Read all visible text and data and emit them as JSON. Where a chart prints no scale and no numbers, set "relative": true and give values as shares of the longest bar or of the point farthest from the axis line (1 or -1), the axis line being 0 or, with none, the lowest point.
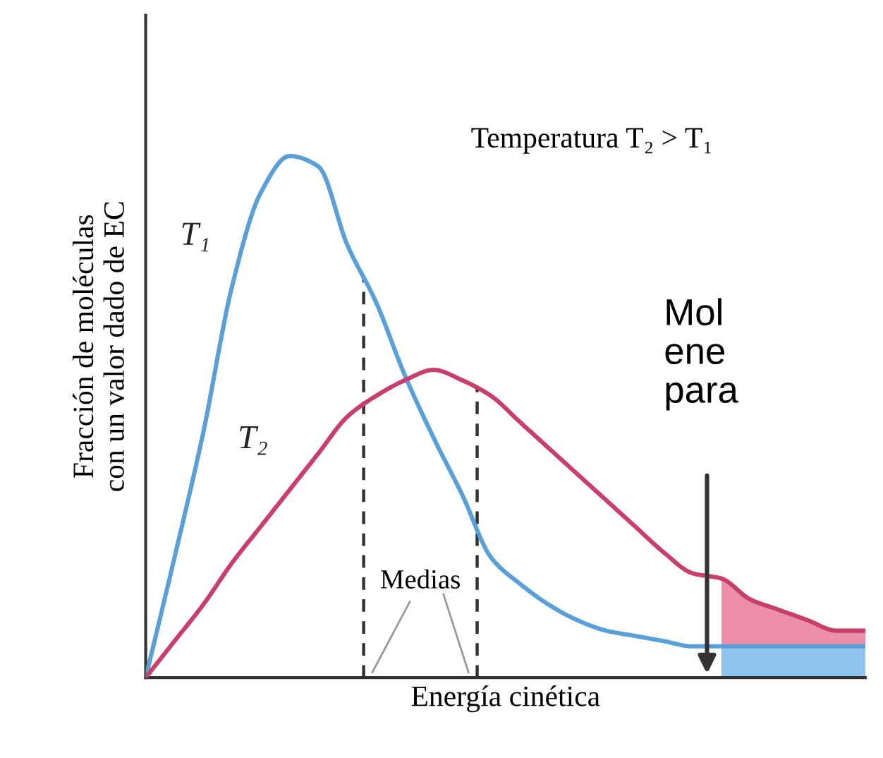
{
  "chart_data": {
    "type": "line",
    "relative": true,
    "xlabel": "Energía cinética",
    "ylabel": "Fracción de moléculas\ncon un valor dado de EC",
    "categories": [
      null,
      null,
      null,
      null,
      null,
      null,
      null,
      null,
      null,
      null,
      null,
      null,
      null,
      null,
      null,
      null,
      null,
      null,
      null,
      null,
      null,
      null,
      null,
      null,
      null,
      null
    ],
    "series": [
      {
        "type": "area",
        "color": "#ec8fa8",
        "values": [
          null,
          null,
          null,
          null,
          null,
          null,
          null,
          null,
          null,
          null,
          null,
          null,
          null,
          null,
          null,
          null,
          null,
          null,
          null,
          null,
          0.19,
          0.15,
          0.13,
          0.11,
          0.09,
          0.09
        ]
      },
      {
        "type": "area",
        "color": "#8fc2ee",
        "values": [
          null,
          null,
          null,
          null,
          null,
          null,
          null,
          null,
          null,
          null,
          null,
          null,
          null,
          null,
          null,
          null,
          null,
          null,
          null,
          null,
          0.06,
          0.06,
          0.06,
          0.06,
          0.06,
          0.06
        ]
      },
      {
        "name": "T₁",
        "color": "#5aa0d8",
        "values": [
          0,
          0.23,
          0.47,
          0.75,
          0.93,
          1.0,
          0.98,
          0.83,
          0.72,
          0.58,
          0.46,
          0.35,
          0.23,
          0.18,
          0.14,
          0.11,
          0.09,
          0.08,
          0.07,
          0.06,
          0.06,
          0.06,
          0.06,
          0.06,
          0.06,
          0.06
        ]
      },
      {
        "name": "T₂",
        "color": "#c8406a",
        "values": [
          0,
          0.07,
          0.14,
          0.22,
          0.29,
          0.36,
          0.43,
          0.5,
          0.54,
          0.57,
          0.59,
          0.57,
          0.54,
          0.49,
          0.44,
          0.39,
          0.34,
          0.29,
          0.24,
          0.2,
          0.19,
          0.15,
          0.13,
          0.11,
          0.09,
          0.09
        ]
      }
    ],
    "annotations": [
      "Temperatura T₂ > T₁",
      "Medias",
      "Mol\nene\npara"
    ],
    "legend": false
  }
}
